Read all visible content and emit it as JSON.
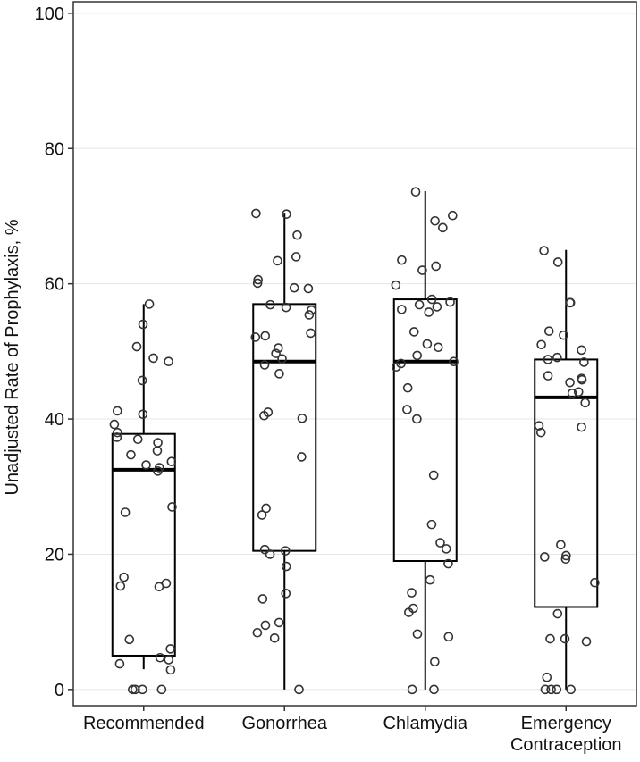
{
  "chart_data": {
    "type": "box",
    "y_label": "Unadjusted Rate of Prophylaxis, %",
    "categories": [
      "Recommended",
      "Gonorrhea",
      "Chlamydia",
      "Emergency Contraception"
    ],
    "boxes": [
      {
        "whisker_low": 3,
        "q1": 5,
        "median": 32.5,
        "q3": 37.8,
        "whisker_high": 57
      },
      {
        "whisker_low": 0,
        "q1": 20.5,
        "median": 48.5,
        "q3": 57,
        "whisker_high": 70.5
      },
      {
        "whisker_low": 0,
        "q1": 19,
        "median": 48.5,
        "q3": 57.7,
        "whisker_high": 73.7
      },
      {
        "whisker_low": 0,
        "q1": 12.2,
        "median": 43.2,
        "q3": 48.8,
        "whisker_high": 65
      }
    ],
    "points": [
      [
        57,
        54,
        50.7,
        49,
        48.5,
        45.7,
        41.2,
        40.7,
        39.2,
        38,
        37.3,
        37,
        36.5,
        35.3,
        34.7,
        33.7,
        33.2,
        32.8,
        32.3,
        27,
        26.2,
        16.6,
        15.7,
        15.3,
        15.2,
        7.4,
        6,
        4.7,
        4.4,
        3.8,
        2.9,
        0,
        0,
        0,
        0
      ],
      [
        70.4,
        70.3,
        67.2,
        64,
        63.4,
        60.6,
        60.1,
        59.4,
        59.3,
        56.9,
        56.5,
        56.1,
        55.4,
        52.7,
        52.3,
        52.1,
        50.5,
        49.7,
        48.9,
        48,
        46.7,
        41,
        40.5,
        40.1,
        34.4,
        26.8,
        25.8,
        20.7,
        20.5,
        20,
        18.2,
        14.2,
        13.4,
        9.9,
        9.5,
        8.4,
        7.6,
        0
      ],
      [
        73.6,
        70.1,
        69.3,
        68.3,
        63.5,
        62.6,
        62,
        59.8,
        57.7,
        57.3,
        56.9,
        56.6,
        56.2,
        55.8,
        52.9,
        51.1,
        50.6,
        49.4,
        48.5,
        48.2,
        47.7,
        44.6,
        41.4,
        40,
        31.7,
        24.4,
        21.7,
        20.8,
        18.6,
        16.2,
        14.3,
        12,
        11.4,
        8.2,
        7.8,
        4.1,
        0,
        0
      ],
      [
        64.9,
        63.2,
        57.2,
        57.2,
        53,
        52.4,
        51,
        50.2,
        49.1,
        48.8,
        48.4,
        46.4,
        46,
        45.8,
        45.4,
        44,
        43.8,
        42.4,
        39,
        38.8,
        38,
        21.4,
        19.8,
        19.6,
        19.3,
        15.8,
        11.2,
        7.5,
        7.5,
        7.1,
        1.8,
        0,
        0,
        0,
        0
      ]
    ],
    "ylim": [
      -2.4,
      101.7
    ],
    "yticks": [
      0,
      20,
      40,
      60,
      80,
      100
    ],
    "grid": true,
    "grid_color": "#e6e6e6",
    "box_color": "#000000",
    "point_color": "#333333"
  }
}
